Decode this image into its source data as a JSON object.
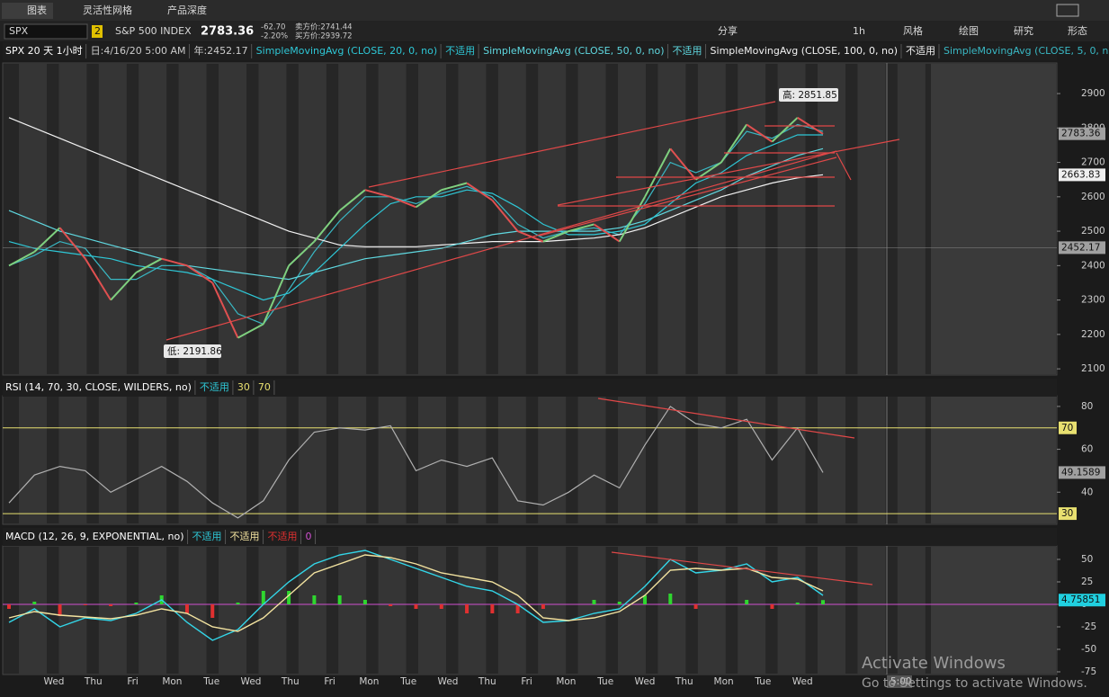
{
  "top_tabs": [
    "图表",
    "灵活性网格",
    "产品深度"
  ],
  "toolbar": {
    "symbol": "SPX",
    "link": "2",
    "name": "S&P 500 INDEX",
    "last": "2783.36",
    "change": "-62.70",
    "change_pct": "-2.20%",
    "bid": "卖方价:2741.44",
    "ask": "买方价:2939.72",
    "buttons": [
      "分享",
      "1h",
      "风格",
      "绘图",
      "研究",
      "形态"
    ]
  },
  "header": {
    "symbol_period": "SPX 20 天 1小时",
    "date": "日:4/16/20 5:00 AM",
    "year": "年:2452.17"
  },
  "chart_data": [
    {
      "type": "line",
      "color": "#7fd07f",
      "values": [
        2400,
        2440,
        2510,
        2420,
        2300,
        2380,
        2420,
        2400,
        2350,
        2190,
        2230,
        2400,
        2470,
        2560,
        2620,
        2600,
        2570,
        2620,
        2640,
        2590,
        2500,
        2470,
        2500,
        2520,
        2470,
        2600,
        2740,
        2650,
        2700,
        2810,
        2760,
        2830,
        2783
      ],
      "series": [
        {
          "name": "SimpleMovingAvg (CLOSE, 20, 0, no)",
          "status": "不适用",
          "color": "#2ec7d6",
          "values": [
            2470,
            2450,
            2440,
            2430,
            2420,
            2400,
            2390,
            2380,
            2360,
            2330,
            2300,
            2320,
            2380,
            2450,
            2520,
            2580,
            2600,
            2600,
            2620,
            2610,
            2570,
            2520,
            2490,
            2490,
            2500,
            2520,
            2580,
            2640,
            2670,
            2720,
            2750,
            2780,
            2780
          ]
        },
        {
          "name": "SimpleMovingAvg (CLOSE, 50, 0, no)",
          "status": "不适用",
          "color": "#5fd8e0",
          "values": [
            2560,
            2530,
            2500,
            2480,
            2460,
            2440,
            2420,
            2400,
            2390,
            2380,
            2370,
            2360,
            2380,
            2400,
            2420,
            2430,
            2440,
            2450,
            2470,
            2490,
            2500,
            2500,
            2500,
            2500,
            2510,
            2530,
            2560,
            2590,
            2620,
            2660,
            2690,
            2720,
            2740
          ]
        },
        {
          "name": "SimpleMovingAvg (CLOSE, 100, 0, no)",
          "status": "不适用",
          "color": "#f2f2f2",
          "values": [
            2830,
            2800,
            2770,
            2740,
            2710,
            2680,
            2650,
            2620,
            2590,
            2560,
            2530,
            2500,
            2480,
            2460,
            2455,
            2455,
            2455,
            2460,
            2465,
            2470,
            2470,
            2470,
            2475,
            2480,
            2490,
            2510,
            2540,
            2570,
            2600,
            2620,
            2640,
            2655,
            2664
          ]
        },
        {
          "name": "SimpleMovingAvg (CLOSE, 5, 0, no)",
          "status": "不适用",
          "color": "#39b8c4",
          "values": [
            2400,
            2430,
            2470,
            2450,
            2360,
            2360,
            2400,
            2400,
            2360,
            2260,
            2230,
            2330,
            2440,
            2530,
            2600,
            2600,
            2580,
            2610,
            2630,
            2600,
            2520,
            2480,
            2500,
            2510,
            2490,
            2580,
            2700,
            2670,
            2700,
            2790,
            2770,
            2810,
            2790
          ]
        }
      ],
      "ylim": [
        2082,
        2989
      ],
      "yticks": [
        2100,
        2200,
        2300,
        2400,
        2500,
        2600,
        2700,
        2800,
        2900
      ],
      "price_labels": [
        2783.36,
        2663.83,
        2452.17
      ],
      "high_label": "高: 2851.85",
      "low_label": "低: 2191.86"
    },
    {
      "type": "line",
      "title": "RSI (14, 70, 30, CLOSE, WILDERS, no)",
      "status": "不适用",
      "color": "#b0b0b0",
      "values": [
        35,
        48,
        52,
        50,
        40,
        46,
        52,
        45,
        35,
        28,
        36,
        55,
        68,
        70,
        69,
        71,
        50,
        55,
        52,
        56,
        36,
        34,
        40,
        48,
        42,
        62,
        80,
        72,
        70,
        74,
        55,
        70,
        49.1589
      ],
      "levels": [
        30,
        70
      ],
      "level_color": "#e8e070",
      "ylim": [
        25,
        85
      ],
      "yticks": [
        40,
        60,
        80
      ]
    },
    {
      "type": "macd",
      "title": "MACD (12, 26, 9, EXPONENTIAL, no)",
      "statuses": [
        "不适用",
        "不适用",
        "不适用"
      ],
      "zero": 0,
      "lines": [
        {
          "color": "#33d6e8",
          "values": [
            -20,
            -5,
            -25,
            -15,
            -18,
            -10,
            5,
            -20,
            -40,
            -28,
            0,
            25,
            45,
            55,
            60,
            50,
            40,
            30,
            20,
            15,
            0,
            -20,
            -18,
            -10,
            -5,
            20,
            50,
            35,
            38,
            45,
            25,
            30,
            10
          ]
        },
        {
          "color": "#f3e3a0",
          "values": [
            -15,
            -8,
            -12,
            -14,
            -16,
            -12,
            -5,
            -10,
            -25,
            -30,
            -15,
            10,
            35,
            45,
            55,
            52,
            45,
            35,
            30,
            25,
            10,
            -15,
            -18,
            -15,
            -8,
            10,
            38,
            40,
            38,
            40,
            30,
            28,
            15
          ]
        }
      ],
      "histogram": {
        "up_color": "#2fd62f",
        "down_color": "#e03030",
        "values": [
          -5,
          3,
          -13,
          -1,
          -2,
          2,
          10,
          -10,
          -15,
          2,
          15,
          15,
          10,
          10,
          5,
          -2,
          -5,
          -5,
          -10,
          -10,
          -10,
          -5,
          0,
          5,
          3,
          10,
          12,
          -5,
          0,
          5,
          -5,
          2,
          4.75851
        ]
      },
      "ylim": [
        -78,
        65
      ],
      "yticks": [
        50,
        25,
        0,
        -25,
        -50,
        -75
      ]
    }
  ],
  "x_labels": [
    "Wed",
    "Thu",
    "Fri",
    "Mon",
    "Tue",
    "Wed",
    "Thu",
    "Fri",
    "Mon",
    "Tue",
    "Wed",
    "Thu",
    "Fri",
    "Mon",
    "Tue",
    "Wed",
    "Thu",
    "Mon",
    "Tue",
    "Wed"
  ],
  "time_bubble": "5:00",
  "watermark": {
    "title": "Activate Windows",
    "subtitle": "Go to Settings to activate Windows."
  }
}
